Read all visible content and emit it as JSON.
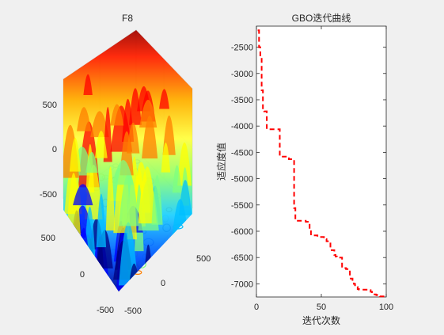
{
  "left_plot": {
    "title": "F8",
    "z_ticks": [
      "500",
      "0",
      "-500"
    ],
    "x_ticks": [
      "500",
      "0",
      "-500"
    ],
    "y_ticks": [
      "500",
      "0",
      "-500"
    ],
    "colormap": [
      "#00007f",
      "#0000ff",
      "#00bfff",
      "#7fff7f",
      "#ffff00",
      "#ff7f00",
      "#ff0000",
      "#7f0000"
    ]
  },
  "chart_data": {
    "type": "line",
    "title": "GBO迭代曲线",
    "xlabel": "迭代次数",
    "ylabel": "适应度值",
    "xlim": [
      0,
      100
    ],
    "ylim": [
      -7250,
      -2100
    ],
    "x_ticks": [
      0,
      50,
      100
    ],
    "y_ticks": [
      -2500,
      -3000,
      -3500,
      -4000,
      -4500,
      -5000,
      -5500,
      -6000,
      -6500,
      -7000
    ],
    "x_tick_labels": [
      "0",
      "50",
      "100"
    ],
    "y_tick_labels": [
      "-2500",
      "-3000",
      "-3500",
      "-4000",
      "-4500",
      "-5000",
      "-5500",
      "-6000",
      "-6500",
      "-7000"
    ],
    "series": [
      {
        "color": "#ff0000",
        "style": "dashed",
        "x": [
          1,
          2,
          3,
          4,
          5,
          6,
          7,
          8,
          9,
          10,
          11,
          12,
          13,
          14,
          15,
          16,
          17,
          18,
          19,
          20,
          21,
          22,
          23,
          24,
          25,
          26,
          27,
          28,
          29,
          30,
          31,
          32,
          33,
          34,
          35,
          36,
          37,
          38,
          39,
          40,
          41,
          42,
          43,
          44,
          45,
          46,
          47,
          48,
          49,
          50,
          51,
          52,
          53,
          54,
          55,
          56,
          57,
          58,
          59,
          60,
          61,
          62,
          63,
          64,
          65,
          66,
          67,
          68,
          69,
          70,
          71,
          72,
          73,
          74,
          75,
          76,
          77,
          78,
          79,
          80,
          81,
          82,
          83,
          84,
          85,
          86,
          87,
          88,
          89,
          90,
          91,
          92,
          93,
          94,
          95,
          96,
          97,
          98,
          99,
          100
        ],
        "values": [
          -2180,
          -2500,
          -2700,
          -3320,
          -3680,
          -3720,
          -3720,
          -4060,
          -4060,
          -4060,
          -4060,
          -4060,
          -4060,
          -4060,
          -4060,
          -4060,
          -4060,
          -4580,
          -4580,
          -4580,
          -4580,
          -4580,
          -4580,
          -4580,
          -4630,
          -4630,
          -4630,
          -4630,
          -5560,
          -5800,
          -5800,
          -5800,
          -5800,
          -5800,
          -5800,
          -5800,
          -5800,
          -5820,
          -5820,
          -5820,
          -5960,
          -6080,
          -6080,
          -6080,
          -6080,
          -6080,
          -6110,
          -6110,
          -6110,
          -6110,
          -6110,
          -6150,
          -6150,
          -6190,
          -6190,
          -6190,
          -6360,
          -6360,
          -6360,
          -6450,
          -6480,
          -6500,
          -6500,
          -6500,
          -6500,
          -6700,
          -6700,
          -6700,
          -6720,
          -6720,
          -6720,
          -6900,
          -6900,
          -6950,
          -7000,
          -7060,
          -7060,
          -7100,
          -7110,
          -7110,
          -7110,
          -7110,
          -7110,
          -7110,
          -7110,
          -7120,
          -7120,
          -7150,
          -7160,
          -7180,
          -7200,
          -7210,
          -7220,
          -7230,
          -7240,
          -7240,
          -7240,
          -7240,
          -7240,
          -7240
        ]
      }
    ]
  }
}
